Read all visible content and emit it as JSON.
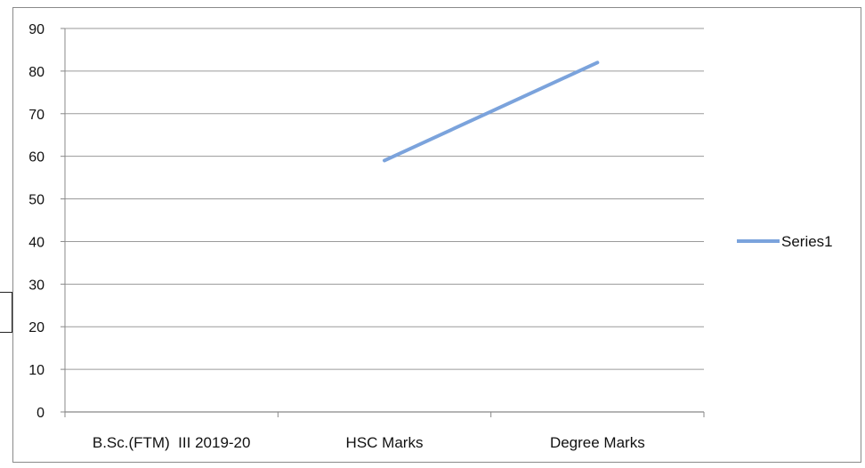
{
  "chart_data": {
    "type": "line",
    "categories": [
      "B.Sc.(FTM)  III 2019-20",
      "HSC Marks",
      "Degree Marks"
    ],
    "series": [
      {
        "name": "Series1",
        "values": [
          null,
          59,
          82
        ],
        "color": "#7ba3dc"
      }
    ],
    "ylim": [
      0,
      90
    ],
    "yticks": [
      "0",
      "10",
      "20",
      "30",
      "40",
      "50",
      "60",
      "70",
      "80",
      "90"
    ],
    "grid": true,
    "legend": "right"
  }
}
